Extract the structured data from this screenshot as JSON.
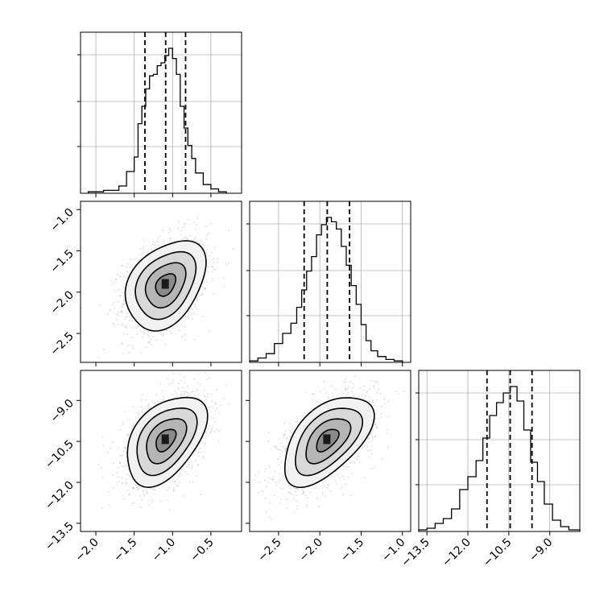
{
  "chart_data": {
    "type": "corner",
    "parameters": [
      {
        "range": [
          -2.2,
          -0.1
        ],
        "ticks": [
          -2.0,
          -1.5,
          -1.0,
          -0.5
        ],
        "tick_labels": [
          "−2.0",
          "−1.5",
          "−1.0",
          "−0.5"
        ],
        "quantiles": [
          -1.36,
          -1.09,
          -0.83
        ]
      },
      {
        "range": [
          -2.85,
          -0.9
        ],
        "ticks": [
          -2.5,
          -2.0,
          -1.5,
          -1.0
        ],
        "tick_labels": [
          "−2.5",
          "−2.0",
          "−1.5",
          "−1.0"
        ],
        "quantiles": [
          -2.19,
          -1.91,
          -1.64
        ]
      },
      {
        "range": [
          -13.8,
          -7.9
        ],
        "ticks": [
          -13.5,
          -12.0,
          -10.5,
          -9.0
        ],
        "tick_labels": [
          "−13.5",
          "−12.0",
          "−10.5",
          "−9.0"
        ],
        "quantiles": [
          -11.3,
          -10.45,
          -9.65
        ]
      }
    ],
    "histograms": [
      {
        "param": 0,
        "bins": [
          -2.1,
          -1.9,
          -1.7,
          -1.6,
          -1.5,
          -1.45,
          -1.4,
          -1.35,
          -1.3,
          -1.25,
          -1.2,
          -1.15,
          -1.1,
          -1.05,
          -1.0,
          -0.95,
          -0.9,
          -0.85,
          -0.8,
          -0.75,
          -0.7,
          -0.6,
          -0.5,
          -0.4,
          -0.3
        ],
        "counts": [
          0.01,
          0.02,
          0.05,
          0.15,
          0.25,
          0.48,
          0.6,
          0.72,
          0.81,
          0.82,
          0.88,
          0.9,
          0.95,
          1.0,
          0.93,
          0.82,
          0.6,
          0.45,
          0.33,
          0.24,
          0.14,
          0.06,
          0.03,
          0.01
        ]
      },
      {
        "param": 1,
        "bins": [
          -2.85,
          -2.75,
          -2.65,
          -2.55,
          -2.45,
          -2.35,
          -2.28,
          -2.22,
          -2.16,
          -2.1,
          -2.04,
          -1.98,
          -1.92,
          -1.86,
          -1.8,
          -1.74,
          -1.68,
          -1.62,
          -1.56,
          -1.5,
          -1.44,
          -1.38,
          -1.3,
          -1.2,
          -1.1,
          -1.0
        ],
        "counts": [
          0.01,
          0.03,
          0.06,
          0.13,
          0.2,
          0.27,
          0.38,
          0.5,
          0.63,
          0.73,
          0.88,
          0.95,
          1.0,
          0.97,
          0.92,
          0.8,
          0.67,
          0.53,
          0.4,
          0.26,
          0.15,
          0.08,
          0.04,
          0.02,
          0.01
        ]
      },
      {
        "param": 2,
        "bins": [
          -13.8,
          -13.5,
          -13.2,
          -12.9,
          -12.6,
          -12.3,
          -12.0,
          -11.7,
          -11.45,
          -11.2,
          -10.95,
          -10.7,
          -10.45,
          -10.2,
          -9.95,
          -9.7,
          -9.45,
          -9.2,
          -8.9,
          -8.6,
          -8.3,
          -7.9
        ],
        "counts": [
          0.01,
          0.02,
          0.05,
          0.08,
          0.14,
          0.26,
          0.34,
          0.44,
          0.58,
          0.72,
          0.8,
          0.86,
          0.9,
          0.81,
          0.63,
          0.43,
          0.31,
          0.17,
          0.07,
          0.03,
          0.01
        ]
      }
    ],
    "contour_panels": [
      {
        "x_param": 0,
        "y_param": 1,
        "center": [
          -1.09,
          -1.91
        ],
        "sigma": [
          0.26,
          0.27
        ],
        "rho": 0.35,
        "levels_sigma": [
          0.5,
          1.0,
          1.5,
          2.0
        ]
      },
      {
        "x_param": 0,
        "y_param": 2,
        "center": [
          -1.09,
          -10.45
        ],
        "sigma": [
          0.26,
          0.82
        ],
        "rho": 0.45,
        "levels_sigma": [
          0.5,
          1.0,
          1.5,
          2.0
        ]
      },
      {
        "x_param": 1,
        "y_param": 2,
        "center": [
          -1.91,
          -10.45
        ],
        "sigma": [
          0.27,
          0.82
        ],
        "rho": 0.55,
        "levels_sigma": [
          0.5,
          1.0,
          1.5,
          2.0
        ]
      }
    ]
  }
}
